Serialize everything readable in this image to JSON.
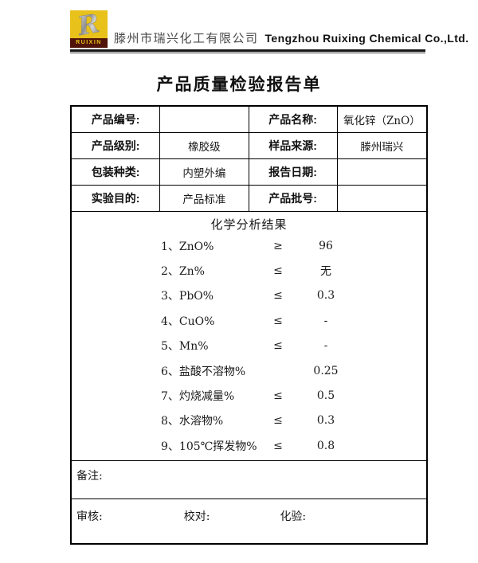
{
  "colors": {
    "logo_yellow": "#e8c11b",
    "logo_band": "#4f1309",
    "border_black": "#000000",
    "text_black": "#1a1a1a",
    "company_cn_gray": "#4a4a4a"
  },
  "header": {
    "logo_letter": "R",
    "logo_brand": "RUIXIN",
    "company_cn": "滕州市瑞兴化工有限公司",
    "company_en": "Tengzhou Ruixing Chemical Co.,Ltd."
  },
  "title": "产品质量检验报告单",
  "info_rows": [
    {
      "label1": "产品编号:",
      "value1": "",
      "label2": "产品名称:",
      "value2": "氧化锌（ZnO）"
    },
    {
      "label1": "产品级别:",
      "value1": "橡胶级",
      "label2": "样品来源:",
      "value2": "滕州瑞兴"
    },
    {
      "label1": "包装种类:",
      "value1": "内塑外编",
      "label2": "报告日期:",
      "value2": ""
    },
    {
      "label1": "实验目的:",
      "value1": "产品标准",
      "label2": "产品批号:",
      "value2": ""
    }
  ],
  "analysis": {
    "heading": "化学分析结果",
    "items": [
      {
        "name": "1、ZnO%",
        "symbol": "≥",
        "value": "96"
      },
      {
        "name": "2、Zn%",
        "symbol": "≤",
        "value": "无"
      },
      {
        "name": "3、PbO%",
        "symbol": "≤",
        "value": "0.3"
      },
      {
        "name": "4、CuO%",
        "symbol": "≤",
        "value": "-"
      },
      {
        "name": "5、Mn%",
        "symbol": "≤",
        "value": "-"
      },
      {
        "name": "6、盐酸不溶物%",
        "symbol": "",
        "value": "0.25"
      },
      {
        "name": "7、灼烧减量%",
        "symbol": "≤",
        "value": "0.5"
      },
      {
        "name": "8、水溶物%",
        "symbol": "≤",
        "value": "0.3"
      },
      {
        "name": "9、105℃挥发物%",
        "symbol": "≤",
        "value": "0.8"
      }
    ]
  },
  "remarks_label": "备注:",
  "signatures": {
    "review_label": "审核:",
    "proofread_label": "校对:",
    "assay_label": "化验:"
  }
}
